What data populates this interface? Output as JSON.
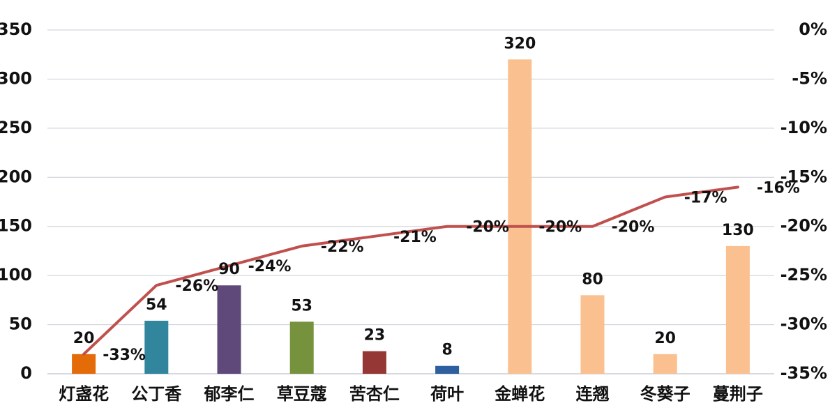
{
  "chart_data": {
    "type": "bar",
    "categories": [
      "灯盏花",
      "公丁香",
      "郁李仁",
      "草豆蔻",
      "苦杏仁",
      "荷叶",
      "金蝉花",
      "连翘",
      "冬葵子",
      "蔓荆子"
    ],
    "bar_values": [
      20,
      54,
      90,
      53,
      23,
      8,
      320,
      80,
      20,
      130
    ],
    "bar_value_labels": [
      "20",
      "54",
      "90",
      "53",
      "23",
      "8",
      "320",
      "80",
      "20",
      "130"
    ],
    "bar_colors": [
      "#e36c09",
      "#31859c",
      "#5f497a",
      "#76923c",
      "#953735",
      "#2e5f9e",
      "#fac090",
      "#fac090",
      "#fac090",
      "#fac090"
    ],
    "line_series": {
      "values": [
        -33,
        -26,
        -24,
        -22,
        -21,
        -20,
        -20,
        -20,
        -17,
        -16
      ],
      "labels": [
        "-33%",
        "-26%",
        "-24%",
        "-22%",
        "-21%",
        "-20%",
        "-20%",
        "-20%",
        "-17%",
        "-16%"
      ],
      "color": "#c0504d"
    },
    "left_axis": {
      "ylim": [
        0,
        350
      ],
      "ticks": [
        0,
        50,
        100,
        150,
        200,
        250,
        300,
        350
      ],
      "tick_labels": [
        "0",
        "50",
        "100",
        "150",
        "200",
        "250",
        "300",
        "350"
      ]
    },
    "right_axis": {
      "ylim": [
        -35,
        0
      ],
      "ticks": [
        -35,
        -30,
        -25,
        -20,
        -15,
        -10,
        -5,
        0
      ],
      "tick_labels": [
        "-35%",
        "-30%",
        "-25%",
        "-20%",
        "-15%",
        "-10%",
        "-5%",
        "0%"
      ]
    },
    "grid": true,
    "legend": "none",
    "title": "",
    "xlabel": "",
    "ylabel": ""
  }
}
